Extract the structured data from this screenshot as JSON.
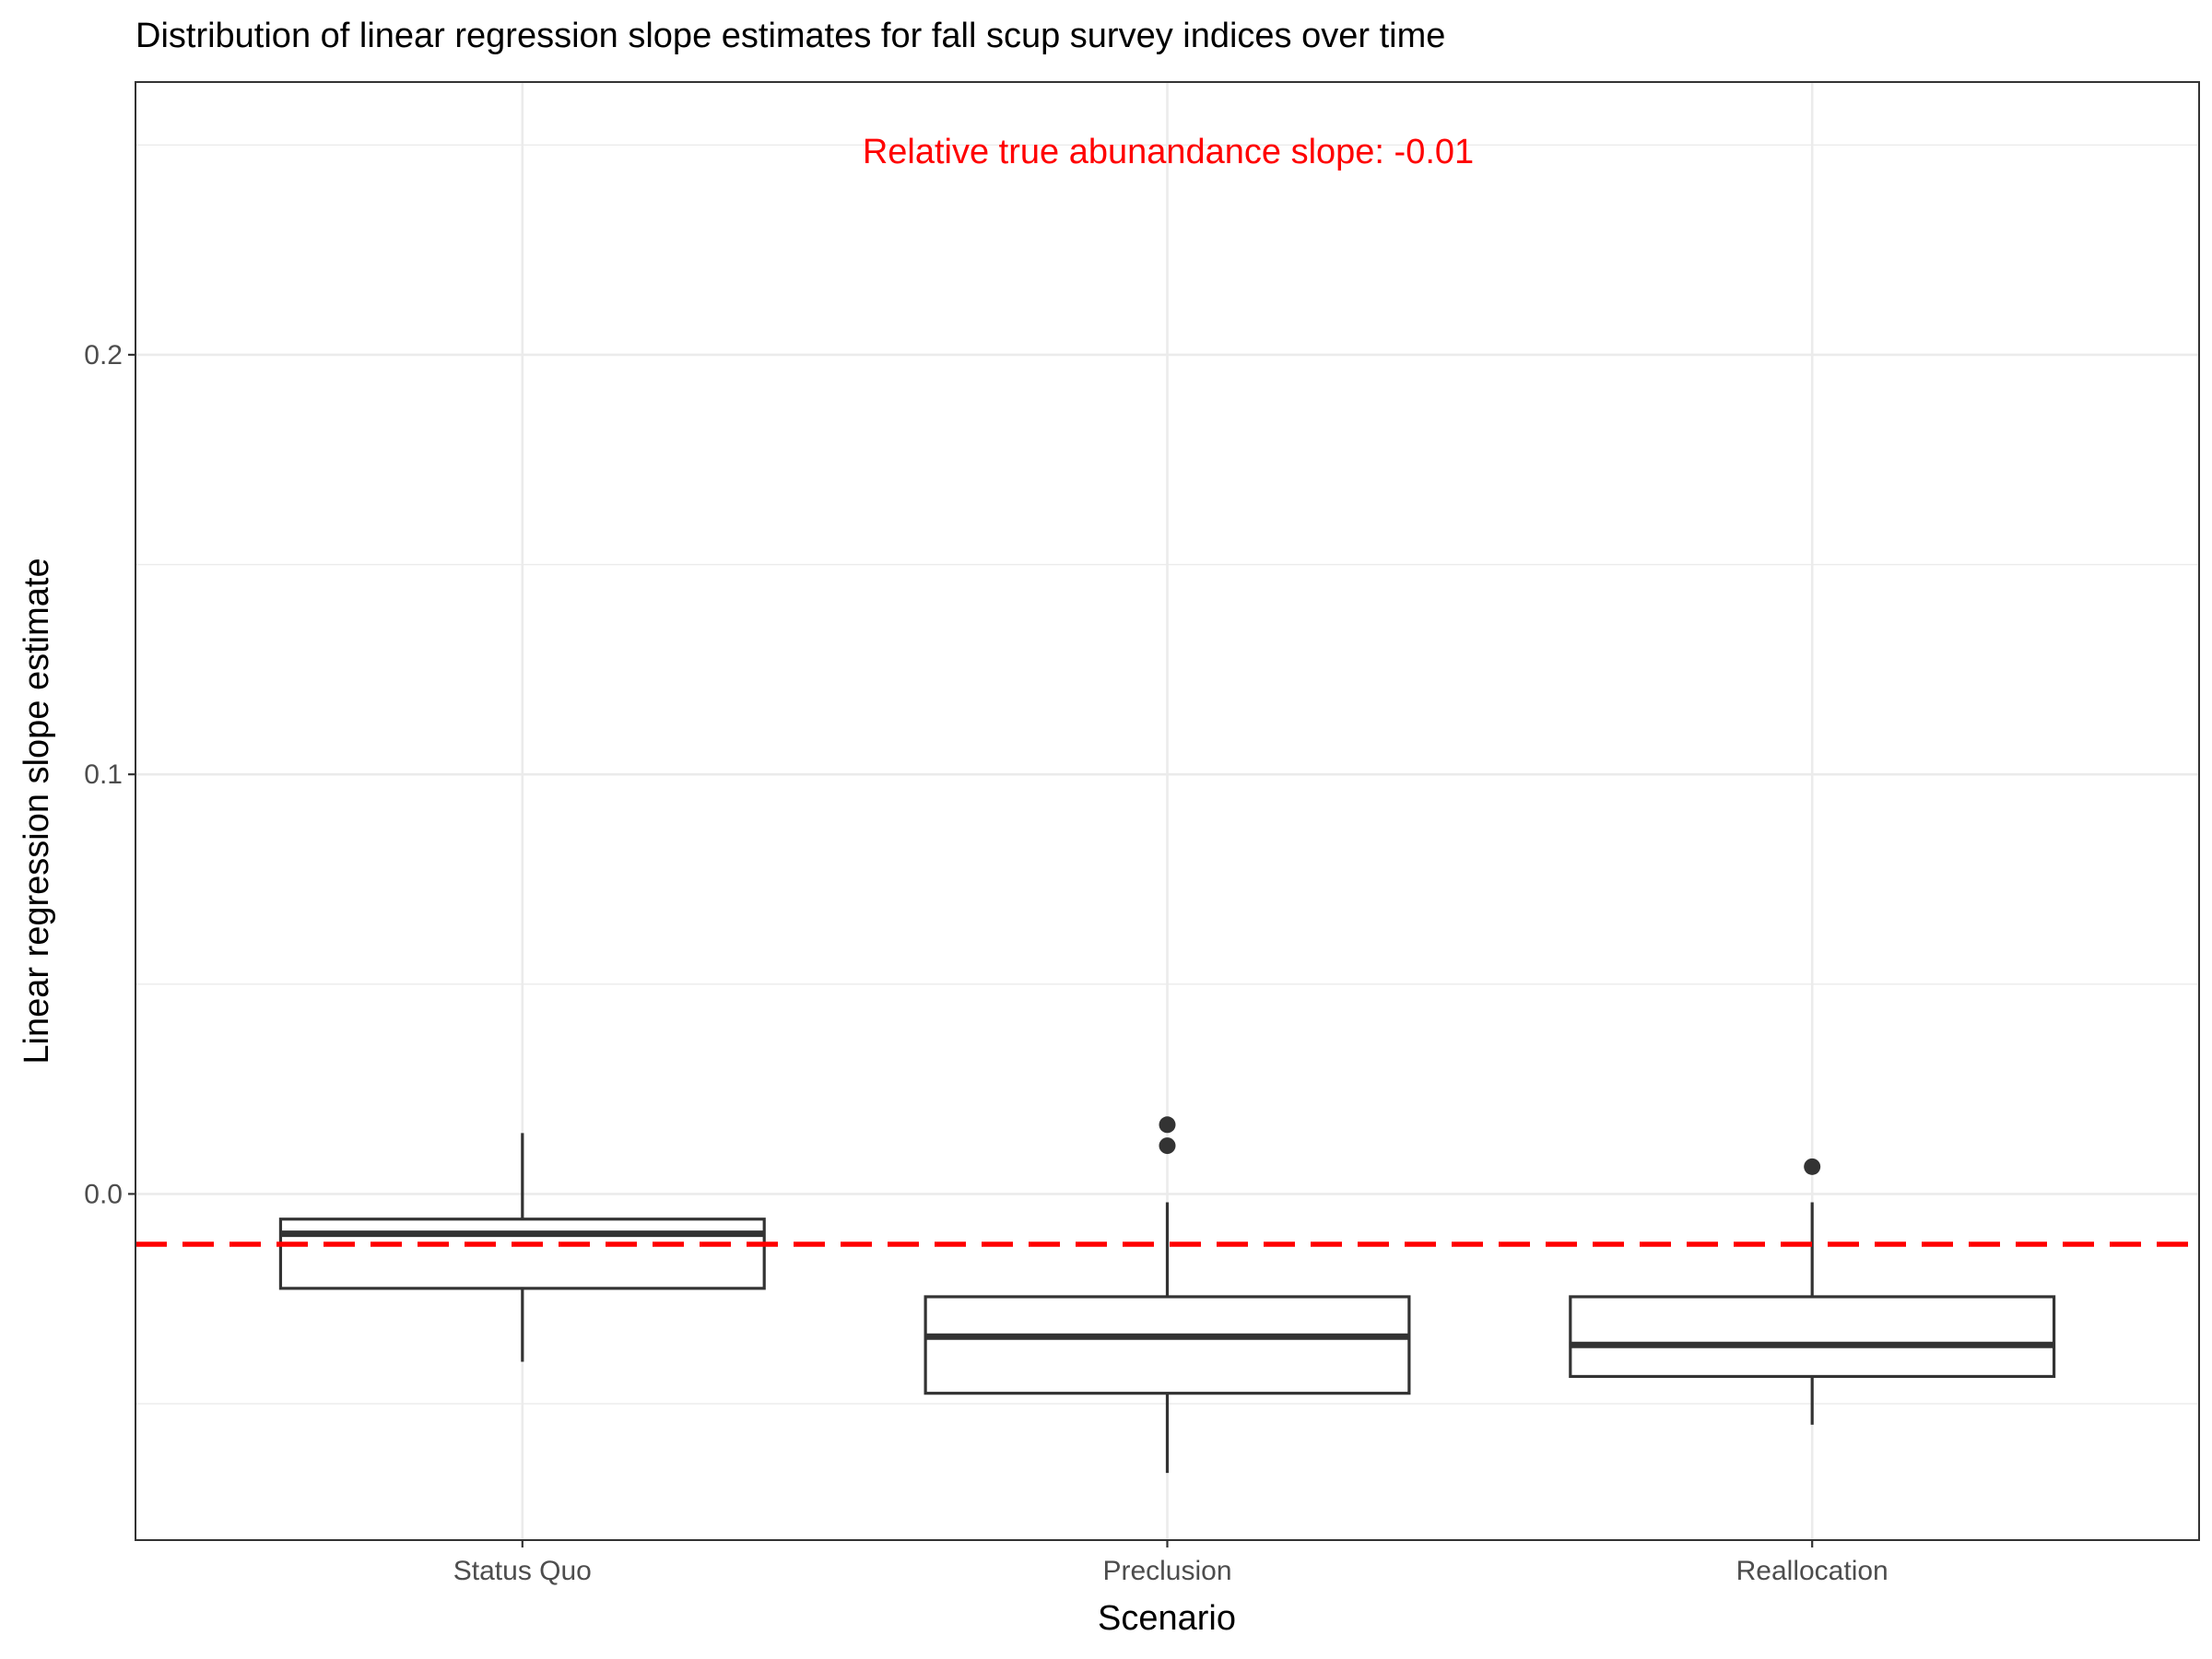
{
  "chart_data": {
    "type": "boxplot",
    "title": "Distribution of linear regression slope estimates for fall scup survey indices over time",
    "xlabel": "Scenario",
    "ylabel": "Linear regression slope estimate",
    "categories": [
      "Status Quo",
      "Preclusion",
      "Reallocation"
    ],
    "ylim": [
      -0.0825,
      0.265
    ],
    "y_ticks": [
      0.0,
      0.1,
      0.2
    ],
    "y_tick_labels": [
      "0.0",
      "0.1",
      "0.2"
    ],
    "grid": true,
    "boxes": [
      {
        "category": "Status Quo",
        "whisker_low": -0.04,
        "q1": -0.0225,
        "median": -0.0095,
        "q3": -0.006,
        "whisker_high": 0.0145,
        "outliers": []
      },
      {
        "category": "Preclusion",
        "whisker_low": -0.0665,
        "q1": -0.0475,
        "median": -0.034,
        "q3": -0.0245,
        "whisker_high": -0.002,
        "outliers": [
          0.0115,
          0.0165
        ]
      },
      {
        "category": "Reallocation",
        "whisker_low": -0.055,
        "q1": -0.0435,
        "median": -0.036,
        "q3": -0.0245,
        "whisker_high": -0.002,
        "outliers": [
          0.0065
        ]
      }
    ],
    "reference_line": {
      "value": -0.012,
      "color": "#ff0000",
      "style": "dashed"
    },
    "annotation": {
      "text": "Relative true abunandance slope: -0.01",
      "color": "#ff0000",
      "x": 2,
      "y": 0.2485
    }
  }
}
